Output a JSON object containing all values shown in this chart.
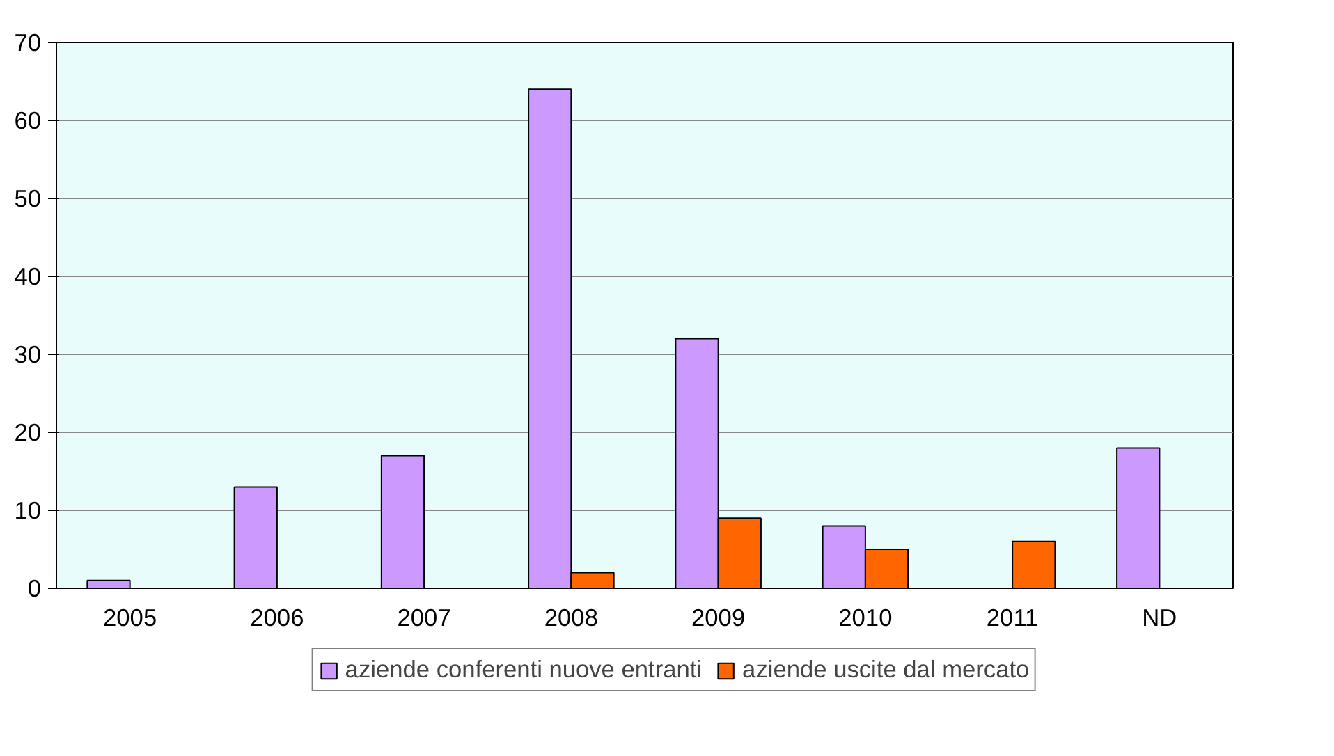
{
  "chart_data": {
    "type": "bar",
    "categories": [
      "2005",
      "2006",
      "2007",
      "2008",
      "2009",
      "2010",
      "2011",
      "ND"
    ],
    "series": [
      {
        "name": "aziende conferenti nuove entranti",
        "color": "#cc99ff",
        "values": [
          1,
          13,
          17,
          64,
          32,
          8,
          null,
          18
        ]
      },
      {
        "name": "aziende uscite dal mercato",
        "color": "#ff6600",
        "values": [
          null,
          null,
          null,
          2,
          9,
          5,
          6,
          null
        ]
      }
    ],
    "ylim": [
      0,
      70
    ],
    "yticks": [
      0,
      10,
      20,
      30,
      40,
      50,
      60,
      70
    ],
    "grid": "y",
    "legend": "bottom"
  }
}
